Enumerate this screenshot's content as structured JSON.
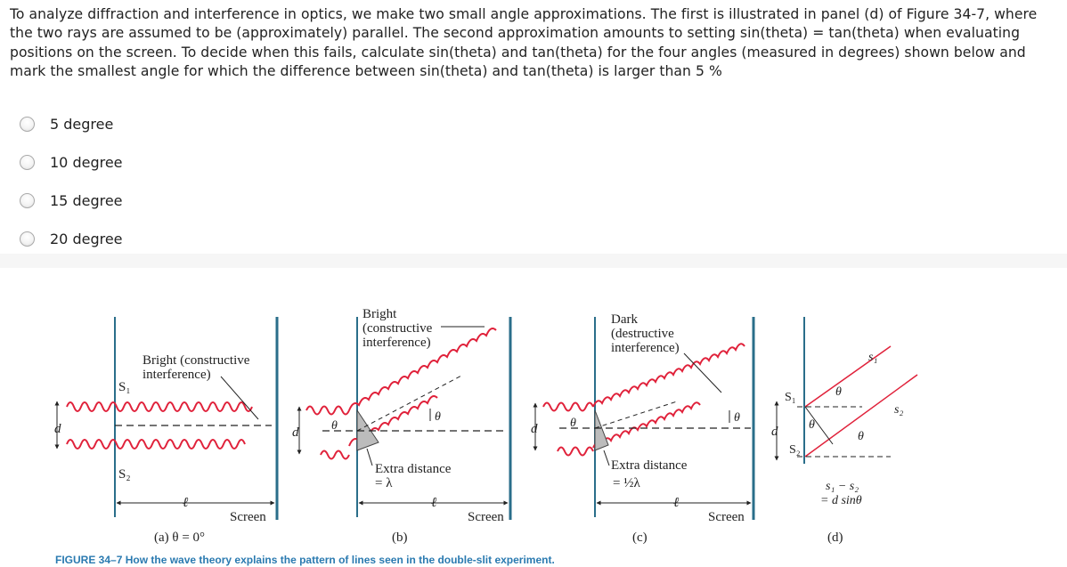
{
  "question": {
    "text": "To analyze diffraction and interference in optics, we make two small angle approximations. The first is illustrated in panel (d) of Figure 34-7, where the two rays are assumed to be (approximately) parallel. The second approximation amounts to setting sin(theta) = tan(theta) when evaluating positions on the screen. To decide when this fails, calculate sin(theta) and tan(theta) for the four angles (measured in degrees) shown below and mark the smallest angle for which the difference between sin(theta) and tan(theta) is larger than 5 %"
  },
  "options": [
    {
      "label": "5 degree",
      "selected": false
    },
    {
      "label": "10 degree",
      "selected": false
    },
    {
      "label": "15 degree",
      "selected": false
    },
    {
      "label": "20 degree",
      "selected": false
    }
  ],
  "figure": {
    "panel_a": {
      "caption": "(a) θ = 0°",
      "annotation_line1": "Bright (constructive",
      "annotation_line2": "interference)",
      "slit1": "S₁",
      "slit2": "S₂",
      "d": "d",
      "l": "ℓ",
      "screen": "Screen"
    },
    "panel_b": {
      "caption": "(b)",
      "annotation_line1": "Bright",
      "annotation_line2": "(constructive",
      "annotation_line3": "interference)",
      "extra_line1": "Extra distance",
      "extra_line2": "= λ",
      "theta": "θ",
      "d": "d",
      "l": "ℓ",
      "screen": "Screen"
    },
    "panel_c": {
      "caption": "(c)",
      "annotation_line1": "Dark",
      "annotation_line2": "(destructive",
      "annotation_line3": "interference)",
      "extra_line1": "Extra distance",
      "extra_line2": "= ½λ",
      "theta": "θ",
      "d": "d",
      "l": "ℓ",
      "screen": "Screen"
    },
    "panel_d": {
      "caption": "(d)",
      "s1_ray": "s₁",
      "s2_ray": "s₂",
      "slit1": "S₁",
      "slit2": "S₂",
      "theta": "θ",
      "d": "d",
      "formula_line1": "s₁ − s₂",
      "formula_line2": "= d sinθ"
    },
    "caption_partial": "FIGURE 34–7  How the wave theory explains the pattern of lines seen in the double-slit experiment."
  }
}
